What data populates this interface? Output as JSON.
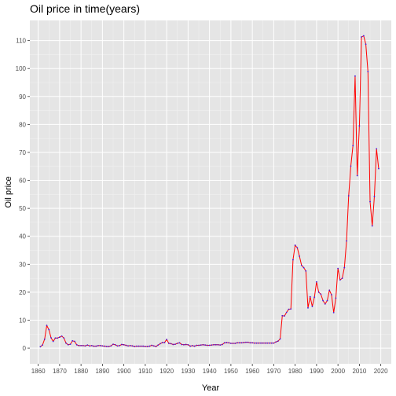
{
  "chart_data": {
    "type": "line",
    "title": "Oil price in time(years)",
    "xlabel": "Year",
    "ylabel": "Oil price",
    "xlim": [
      1856.1,
      2024.9
    ],
    "ylim": [
      -5.6,
      117.2
    ],
    "x_ticks": [
      "1860",
      "1870",
      "1880",
      "1890",
      "1900",
      "1910",
      "1920",
      "1930",
      "1940",
      "1950",
      "1960",
      "1970",
      "1980",
      "1990",
      "2000",
      "2010",
      "2020"
    ],
    "y_ticks": [
      "0",
      "10",
      "20",
      "30",
      "40",
      "50",
      "60",
      "70",
      "80",
      "90",
      "100",
      "110"
    ],
    "grid": true,
    "legend": "none",
    "colors": {
      "panel": "#e5e5e5",
      "grid_major": "#ffffff",
      "grid_minor": "#f2f2f2",
      "line": "#ff0000",
      "points": "#4b1bd8"
    },
    "series": [
      {
        "x": [
          1861,
          1862,
          1863,
          1864,
          1865,
          1866,
          1867,
          1868,
          1869,
          1870,
          1871,
          1872,
          1873,
          1874,
          1875,
          1876,
          1877,
          1878,
          1879,
          1880,
          1881,
          1882,
          1883,
          1884,
          1885,
          1886,
          1887,
          1888,
          1889,
          1890,
          1891,
          1892,
          1893,
          1894,
          1895,
          1896,
          1897,
          1898,
          1899,
          1900,
          1901,
          1902,
          1903,
          1904,
          1905,
          1906,
          1907,
          1908,
          1909,
          1910,
          1911,
          1912,
          1913,
          1914,
          1915,
          1916,
          1917,
          1918,
          1919,
          1920,
          1921,
          1922,
          1923,
          1924,
          1925,
          1926,
          1927,
          1928,
          1929,
          1930,
          1931,
          1932,
          1933,
          1934,
          1935,
          1936,
          1937,
          1938,
          1939,
          1940,
          1941,
          1942,
          1943,
          1944,
          1945,
          1946,
          1947,
          1948,
          1949,
          1950,
          1951,
          1952,
          1953,
          1954,
          1955,
          1956,
          1957,
          1958,
          1959,
          1960,
          1961,
          1962,
          1963,
          1964,
          1965,
          1966,
          1967,
          1968,
          1969,
          1970,
          1971,
          1972,
          1973,
          1974,
          1975,
          1976,
          1977,
          1978,
          1979,
          1980,
          1981,
          1982,
          1983,
          1984,
          1985,
          1986,
          1987,
          1988,
          1989,
          1990,
          1991,
          1992,
          1993,
          1994,
          1995,
          1996,
          1997,
          1998,
          1999,
          2000,
          2001,
          2002,
          2003,
          2004,
          2005,
          2006,
          2007,
          2008,
          2009,
          2010,
          2011,
          2012,
          2013,
          2014,
          2015,
          2016,
          2017,
          2018,
          2019
        ],
        "y": [
          0.5,
          1.1,
          3.2,
          8.1,
          6.6,
          3.7,
          2.4,
          3.6,
          3.6,
          3.9,
          4.3,
          3.6,
          1.8,
          1.2,
          1.4,
          2.6,
          2.4,
          1.2,
          0.9,
          0.9,
          0.9,
          0.8,
          1.1,
          0.8,
          0.9,
          0.7,
          0.7,
          0.9,
          0.9,
          0.8,
          0.7,
          0.6,
          0.6,
          0.8,
          1.4,
          1.2,
          0.8,
          0.9,
          1.3,
          1.2,
          1.0,
          0.8,
          0.9,
          0.8,
          0.6,
          0.7,
          0.7,
          0.7,
          0.7,
          0.6,
          0.6,
          0.7,
          1.0,
          0.8,
          0.6,
          1.1,
          1.6,
          2.0,
          2.0,
          3.1,
          1.7,
          1.6,
          1.3,
          1.4,
          1.7,
          1.9,
          1.3,
          1.2,
          1.3,
          1.2,
          0.7,
          0.9,
          0.7,
          1.0,
          1.0,
          1.1,
          1.2,
          1.1,
          1.0,
          1.0,
          1.1,
          1.2,
          1.2,
          1.2,
          1.1,
          1.3,
          1.9,
          2.0,
          1.9,
          1.7,
          1.7,
          1.7,
          1.9,
          1.9,
          1.9,
          2.0,
          2.1,
          2.1,
          1.9,
          1.9,
          1.8,
          1.8,
          1.8,
          1.8,
          1.8,
          1.8,
          1.8,
          1.8,
          1.8,
          1.8,
          2.2,
          2.5,
          3.3,
          11.6,
          11.5,
          12.8,
          13.9,
          14.0,
          31.6,
          36.8,
          35.9,
          32.9,
          29.6,
          28.8,
          27.6,
          14.4,
          18.4,
          14.9,
          18.2,
          23.7,
          20.0,
          19.3,
          17.0,
          15.8,
          17.0,
          20.7,
          19.1,
          12.7,
          17.9,
          28.5,
          24.4,
          25.0,
          28.8,
          38.3,
          54.5,
          65.1,
          72.4,
          97.3,
          61.7,
          79.5,
          111.3,
          111.7,
          108.7,
          98.9,
          52.4,
          43.7,
          54.2,
          71.3,
          64.2
        ]
      }
    ]
  }
}
